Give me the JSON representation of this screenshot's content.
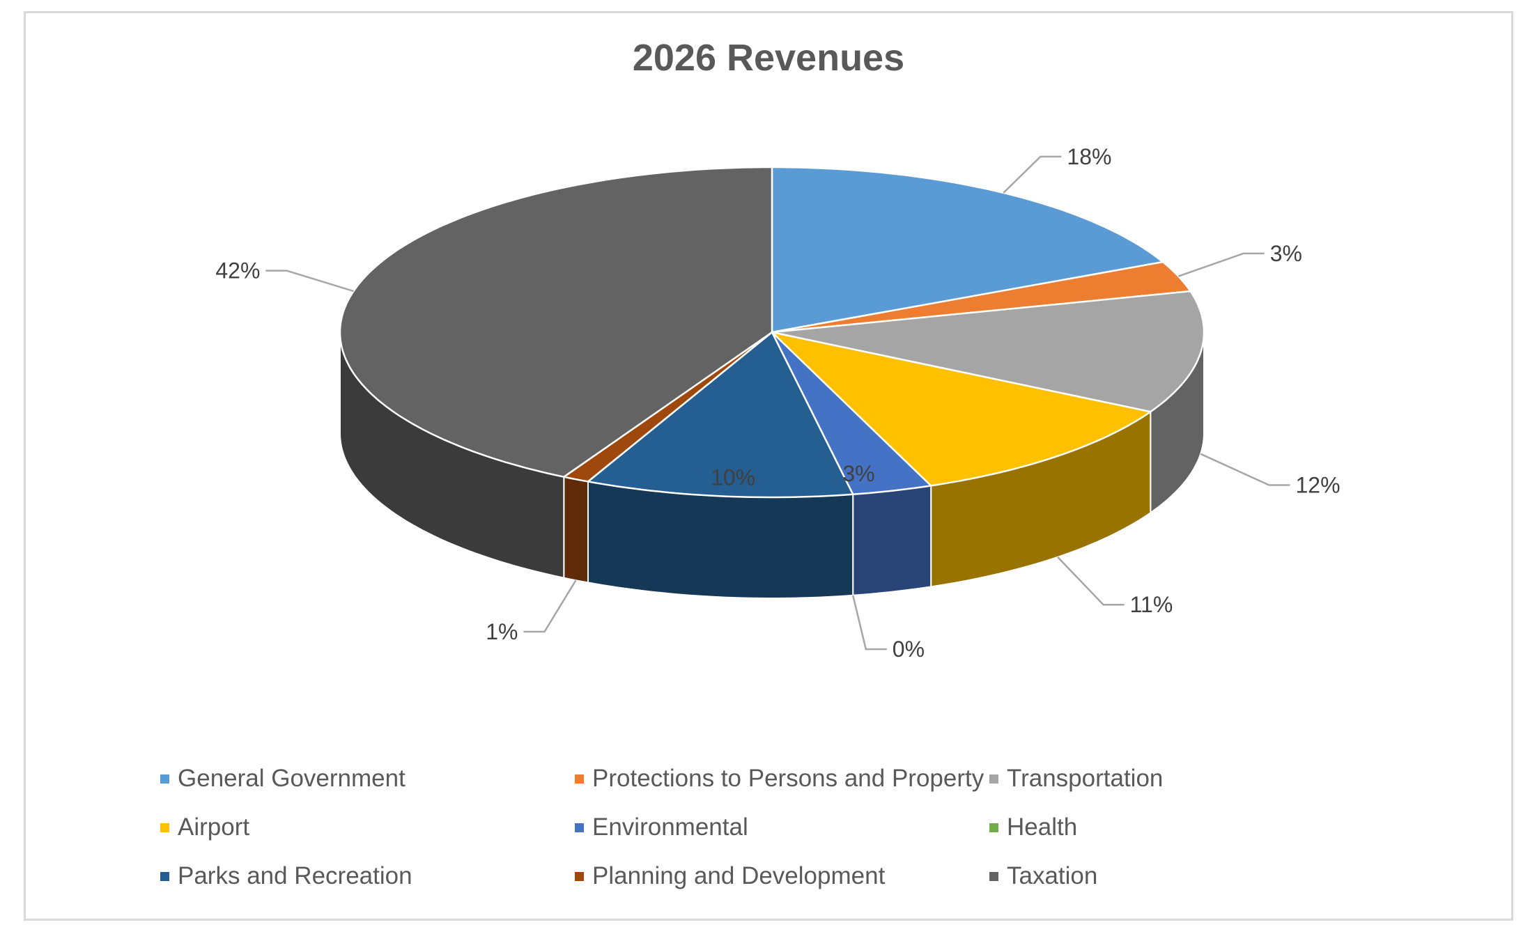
{
  "chart_data": {
    "type": "pie",
    "title": "2026 Revenues",
    "categories": [
      "General Government",
      "Protections to Persons and Property",
      "Transportation",
      "Airport",
      "Environmental",
      "Health",
      "Parks and Recreation",
      "Planning and Development",
      "Taxation"
    ],
    "values": [
      18,
      3,
      12,
      11,
      3,
      0,
      10,
      1,
      42
    ],
    "labels": [
      "18%",
      "3%",
      "12%",
      "11%",
      "3%",
      "0%",
      "10%",
      "1%",
      "42%"
    ],
    "colors": [
      "#5b9bd5",
      "#ed7d31",
      "#a5a5a5",
      "#ffc000",
      "#4472c4",
      "#70ad47",
      "#255e91",
      "#9e480e",
      "#636363"
    ],
    "style": "3d",
    "legend": "bottom"
  }
}
